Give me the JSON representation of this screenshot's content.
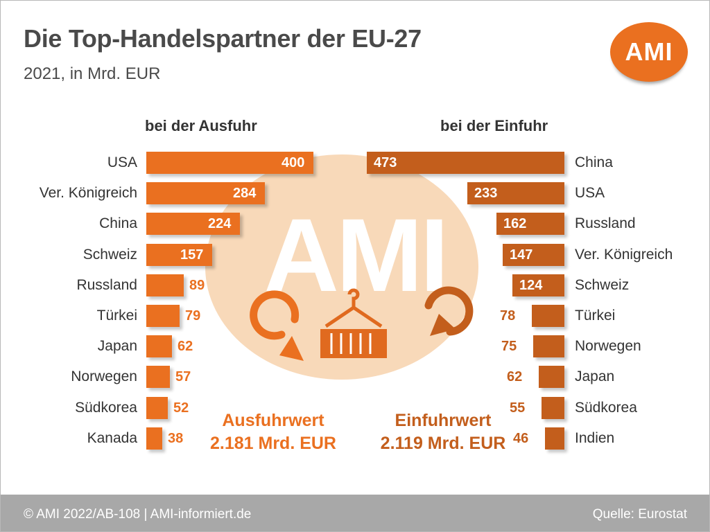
{
  "header": {
    "title": "Die Top-Handelspartner der EU-27",
    "subtitle": "2021, in Mrd. EUR",
    "logo_text": "AMI"
  },
  "chart_data": [
    {
      "type": "bar",
      "orientation": "horizontal",
      "title": "bei der Ausfuhr",
      "categories": [
        "USA",
        "Ver. Königreich",
        "China",
        "Schweiz",
        "Russland",
        "Türkei",
        "Japan",
        "Norwegen",
        "Südkorea",
        "Kanada"
      ],
      "values": [
        400,
        284,
        224,
        157,
        89,
        79,
        62,
        57,
        52,
        38
      ],
      "color": "#ea7020",
      "total": "Ausfuhrwert",
      "total_value": "2.181 Mrd. EUR"
    },
    {
      "type": "bar",
      "orientation": "horizontal",
      "title": "bei der Einfuhr",
      "categories": [
        "China",
        "USA",
        "Russland",
        "Ver. Königreich",
        "Schweiz",
        "Türkei",
        "Norwegen",
        "Japan",
        "Südkorea",
        "Indien"
      ],
      "values": [
        473,
        233,
        162,
        147,
        124,
        78,
        75,
        62,
        55,
        46
      ],
      "color": "#c35e1c",
      "total": "Einfuhrwert",
      "total_value": "2.119 Mrd. EUR"
    }
  ],
  "watermark": "AMI",
  "footer": {
    "copyright": "© AMI 2022/AB-108 | AMI-informiert.de",
    "source": "Quelle: Eurostat"
  },
  "colors": {
    "export_bar": "#ea7020",
    "import_bar": "#c35e1c",
    "watermark_background": "#f8d9b9",
    "footer_background": "#a8a8a8",
    "title_text": "#4a4a4a"
  },
  "icons": [
    "rotate-export-icon",
    "container-icon",
    "rotate-import-icon"
  ]
}
